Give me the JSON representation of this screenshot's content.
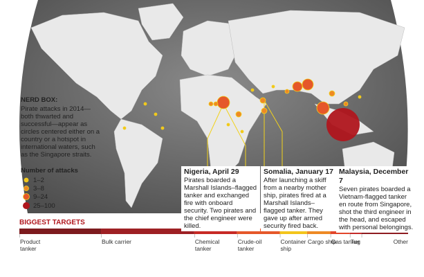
{
  "nerd_box": {
    "title": "NERD BOX:",
    "text": "Pirate attacks in 2014—both thwarted and successful—appear as circles centered either on a country or a hotspot in international waters, such as the Singapore straits."
  },
  "legend": {
    "title": "Number of attacks",
    "items": [
      "1–2",
      "3–8",
      "9–24",
      "25–100"
    ]
  },
  "callouts": [
    {
      "title": "Nigeria, April 29",
      "text": "Pirates boarded a Marshall Islands–flagged tanker and exchanged fire with onboard security. Two pirates and the chief engineer were killed."
    },
    {
      "title": "Somalia, January 17",
      "text": "After launching a skiff from a nearby mother ship, pirates fired at a Marshall Islands–flagged tanker. They gave up after armed security fired back."
    },
    {
      "title": "Malaysia, December 7",
      "text": "Seven pirates boarded a Vietnam-flagged tanker en route from Singapore, shot the third engineer in the head, and escaped with personal belongings."
    }
  ],
  "chart_data": {
    "type": "bar",
    "title": "BIGGEST TARGETS",
    "categories": [
      "Product tanker",
      "Bulk carrier",
      "Chemical tanker",
      "Crude-oil tanker",
      "Container ship",
      "Cargo ship",
      "Gas tanker",
      "Tug",
      "Other"
    ],
    "values": [
      21,
      24,
      11,
      11,
      7,
      6,
      5,
      3,
      12
    ],
    "colors": [
      "#7d1b1e",
      "#9e2024",
      "#c72a25",
      "#e5582a",
      "#f3c51c",
      "#ee8a25",
      "#e2462b",
      "#c42a28",
      "#8e1c20"
    ]
  }
}
